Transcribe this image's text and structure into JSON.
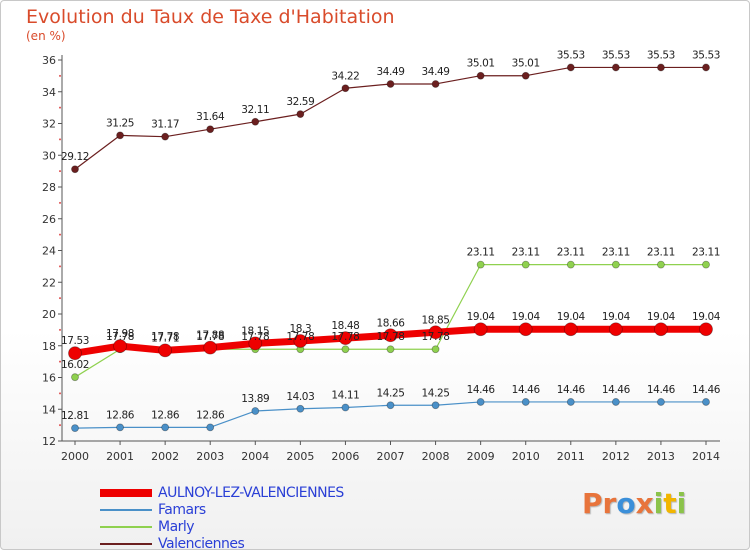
{
  "header": {
    "title": "Evolution du Taux de Taxe d'Habitation",
    "unit": "(en %)"
  },
  "logo": {
    "text": "Proxiti",
    "letters": [
      {
        "ch": "P",
        "color": "#e8743b"
      },
      {
        "ch": "r",
        "color": "#e8743b"
      },
      {
        "ch": "o",
        "color": "#3b8fd9"
      },
      {
        "ch": "x",
        "color": "#e8743b"
      },
      {
        "ch": "i",
        "color": "#8bc34a"
      },
      {
        "ch": "t",
        "color": "#f2b500"
      },
      {
        "ch": "i",
        "color": "#8bc34a"
      }
    ]
  },
  "chart_data": {
    "type": "line",
    "title": "Evolution du Taux de Taxe d'Habitation",
    "ylabel": "(en %)",
    "xlabel": "",
    "x": [
      "2000",
      "2001",
      "2002",
      "2003",
      "2004",
      "2005",
      "2006",
      "2007",
      "2008",
      "2009",
      "2010",
      "2011",
      "2012",
      "2013",
      "2014"
    ],
    "ylim": [
      12,
      36
    ],
    "yticks": [
      12,
      14,
      16,
      18,
      20,
      22,
      24,
      26,
      28,
      30,
      32,
      34,
      36
    ],
    "grid": false,
    "legend_position": "bottom-left",
    "series": [
      {
        "name": "Valenciennes",
        "color": "#6b1f1f",
        "width": 1.2,
        "marker": 3.5,
        "values": [
          29.12,
          31.25,
          31.17,
          31.64,
          32.11,
          32.59,
          34.22,
          34.49,
          34.49,
          35.01,
          35.01,
          35.53,
          35.53,
          35.53,
          35.53
        ],
        "labels": [
          "29.12",
          "31.25",
          "31.17",
          "31.64",
          "32.11",
          "32.59",
          "34.22",
          "34.49",
          "34.49",
          "35.01",
          "35.01",
          "35.53",
          "35.53",
          "35.53",
          "35.53"
        ]
      },
      {
        "name": "Marly",
        "color": "#8fd14f",
        "width": 1.2,
        "marker": 3.5,
        "values": [
          16.02,
          17.78,
          17.78,
          17.78,
          17.78,
          17.78,
          17.78,
          17.78,
          17.78,
          23.11,
          23.11,
          23.11,
          23.11,
          23.11,
          23.11
        ],
        "labels": [
          "16.02",
          "17.78",
          "17.78",
          "17.78",
          "17.78",
          "17.78",
          "17.78",
          "17.78",
          "17.78",
          "23.11",
          "23.11",
          "23.11",
          "23.11",
          "23.11",
          "23.11"
        ]
      },
      {
        "name": "Famars",
        "color": "#4a90c8",
        "width": 1.2,
        "marker": 3.5,
        "values": [
          12.81,
          12.86,
          12.86,
          12.86,
          13.89,
          14.03,
          14.11,
          14.25,
          14.25,
          14.46,
          14.46,
          14.46,
          14.46,
          14.46,
          14.46
        ],
        "labels": [
          "12.81",
          "12.86",
          "12.86",
          "12.86",
          "13.89",
          "14.03",
          "14.11",
          "14.25",
          "14.25",
          "14.46",
          "14.46",
          "14.46",
          "14.46",
          "14.46",
          "14.46"
        ]
      },
      {
        "name": "AULNOY-LEZ-VALENCIENNES",
        "color": "#ee0000",
        "width": 7,
        "marker": 6.5,
        "values": [
          17.53,
          17.98,
          17.71,
          17.88,
          18.15,
          18.3,
          18.48,
          18.66,
          18.85,
          19.04,
          19.04,
          19.04,
          19.04,
          19.04,
          19.04
        ],
        "labels": [
          "17.53",
          "17.98",
          "17.71",
          "17.88",
          "18.15",
          "18.3",
          "18.48",
          "18.66",
          "18.85",
          "19.04",
          "19.04",
          "19.04",
          "19.04",
          "19.04",
          "19.04"
        ]
      }
    ],
    "legend": [
      {
        "name": "AULNOY-LEZ-VALENCIENNES",
        "color": "#ee0000",
        "thickness": 8
      },
      {
        "name": "Famars",
        "color": "#4a90c8",
        "thickness": 2
      },
      {
        "name": "Marly",
        "color": "#8fd14f",
        "thickness": 2
      },
      {
        "name": "Valenciennes",
        "color": "#6b1f1f",
        "thickness": 2
      }
    ]
  }
}
